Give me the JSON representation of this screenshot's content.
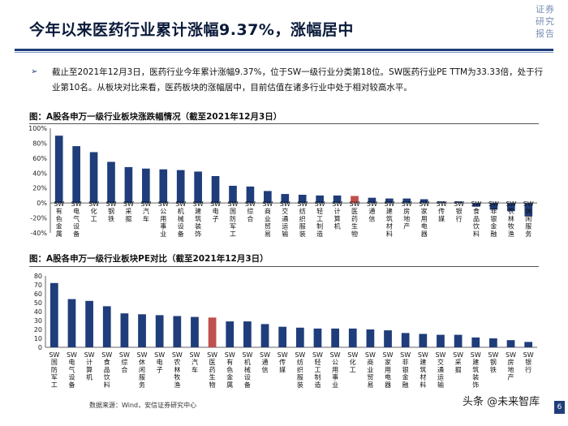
{
  "header": {
    "title": "今年以来医药行业累计涨幅9.37%，涨幅居中",
    "brand_lines": [
      "证券",
      "研究",
      "报告"
    ]
  },
  "summary": {
    "bullet": "➢",
    "text": "截止至2021年12月3日，医药行业今年累计涨幅9.37%，位于SW一级行业分类第18位。SW医药行业PE TTM为33.33倍，处于行业第10名。从板块对比来看，医药板块的涨幅居中，目前估值在诸多行业中处于相对较高水平。"
  },
  "captions": {
    "chart1": "图：A股各申万一级行业板块涨跌幅情况（截至2021年12月3日）",
    "chart2": "图：A股各申万一级行业板块PE对比（截至2021年12月3日）"
  },
  "source": "数据来源：Wind，安信证券研究中心",
  "footer": "头条 @未来智库",
  "page_number": "6",
  "colors": {
    "bar": "#1f3d7a",
    "highlight": "#c0504d"
  },
  "chart_data": [
    {
      "type": "bar",
      "title": "A股各申万一级行业板块涨跌幅情况（截至2021年12月3日）",
      "categories": [
        "SW有色金属",
        "SW电气设备",
        "SW化工",
        "SW钢铁",
        "SW采掘",
        "SW汽车",
        "SW公用事业",
        "SW机械设备",
        "SW建筑装饰",
        "SW电子",
        "SW国防军工",
        "SW综合",
        "SW商业贸易",
        "SW交通运输",
        "SW纺织服装",
        "SW轻工制造",
        "SW计算机",
        "SW医药生物",
        "SW通信",
        "SW建筑材料",
        "SW房地产",
        "SW家用电器",
        "SW传媒",
        "SW银行",
        "SW食品饮料",
        "SW非银金融",
        "SW农林牧渔",
        "SW休闲服务"
      ],
      "values": [
        90,
        76,
        68,
        55,
        48,
        46,
        45,
        44,
        42,
        36,
        23,
        22,
        16,
        12,
        11,
        10,
        10,
        9.37,
        7,
        6,
        6,
        5,
        2,
        2,
        -5,
        -9,
        -11,
        -18
      ],
      "highlight": "SW医药生物",
      "ylim": [
        -40,
        100
      ],
      "yticks": [
        "100%",
        "80%",
        "60%",
        "40%",
        "20%",
        "0%",
        "-20%",
        "-40%"
      ],
      "ytick_values": [
        100,
        80,
        60,
        40,
        20,
        0,
        -20,
        -40
      ]
    },
    {
      "type": "bar",
      "title": "A股各申万一级行业板块PE对比（截至2021年12月3日）",
      "categories": [
        "SW国防军工",
        "SW电气设备",
        "SW计算机",
        "SW食品饮料",
        "SW综合",
        "SW休闲服务",
        "SW电子",
        "SW农林牧渔",
        "SW汽车",
        "SW医药生物",
        "SW有色金属",
        "SW机械设备",
        "SW通信",
        "SW传媒",
        "SW纺织服装",
        "SW轻工制造",
        "SW公用事业",
        "SW化工",
        "SW商业贸易",
        "SW家用电器",
        "SW非银金融",
        "SW建筑材料",
        "SW交通运输",
        "SW采掘",
        "SW建筑装饰",
        "SW钢铁",
        "SW房地产",
        "SW银行"
      ],
      "values": [
        72,
        54,
        52,
        46,
        38,
        37,
        36,
        35,
        34,
        33.33,
        29,
        29,
        26,
        23,
        22,
        21,
        21,
        21,
        20,
        19,
        16,
        15,
        14,
        14,
        11,
        10,
        8,
        6
      ],
      "highlight": "SW医药生物",
      "ylim": [
        0,
        80
      ],
      "yticks": [
        "80",
        "70",
        "60",
        "50",
        "40",
        "30",
        "20",
        "10",
        "0"
      ],
      "ytick_values": [
        80,
        70,
        60,
        50,
        40,
        30,
        20,
        10,
        0
      ]
    }
  ]
}
